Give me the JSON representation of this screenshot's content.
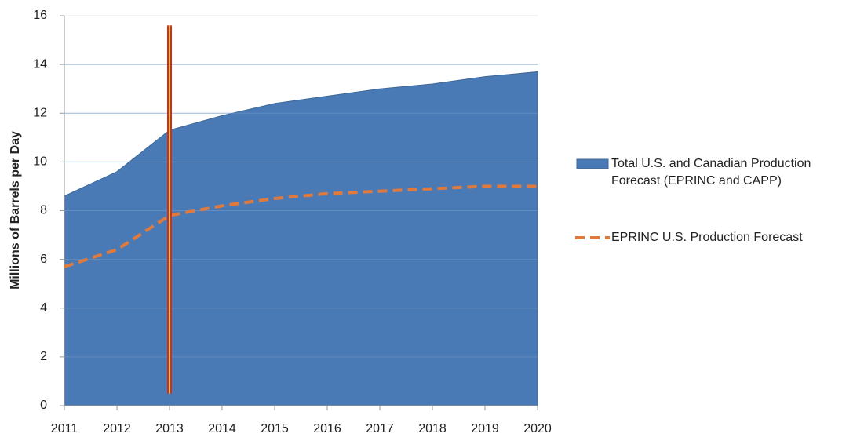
{
  "chart_data": {
    "type": "area",
    "y_label": "Millions of Barrels per Day",
    "x": [
      2011,
      2012,
      2013,
      2014,
      2015,
      2016,
      2017,
      2018,
      2019,
      2020
    ],
    "xlim": [
      2011,
      2020
    ],
    "xticks": [
      2011,
      2012,
      2013,
      2014,
      2015,
      2016,
      2017,
      2018,
      2019,
      2020
    ],
    "ylim": [
      0,
      16
    ],
    "yticks": [
      0,
      2,
      4,
      6,
      8,
      10,
      12,
      14,
      16
    ],
    "grid": true,
    "legend": "right",
    "series": [
      {
        "name": "Total U.S. and Canadian Production Forecast (EPRINC and CAPP)",
        "type": "area",
        "color": "#4a7ab5",
        "values": [
          8.6,
          9.6,
          11.3,
          11.9,
          12.4,
          12.7,
          13.0,
          13.2,
          13.5,
          13.7
        ]
      },
      {
        "name": "EPRINC U.S. Production Forecast",
        "type": "line",
        "dashed": true,
        "color": "#e07a3c",
        "values": [
          5.7,
          6.4,
          7.8,
          8.2,
          8.5,
          8.7,
          8.8,
          8.9,
          9.0,
          9.0
        ]
      }
    ],
    "vertical_line": {
      "x": 2013,
      "from": 0.5,
      "to": 15.6,
      "colors": [
        "#d42a2a",
        "#e8c23a"
      ]
    }
  }
}
